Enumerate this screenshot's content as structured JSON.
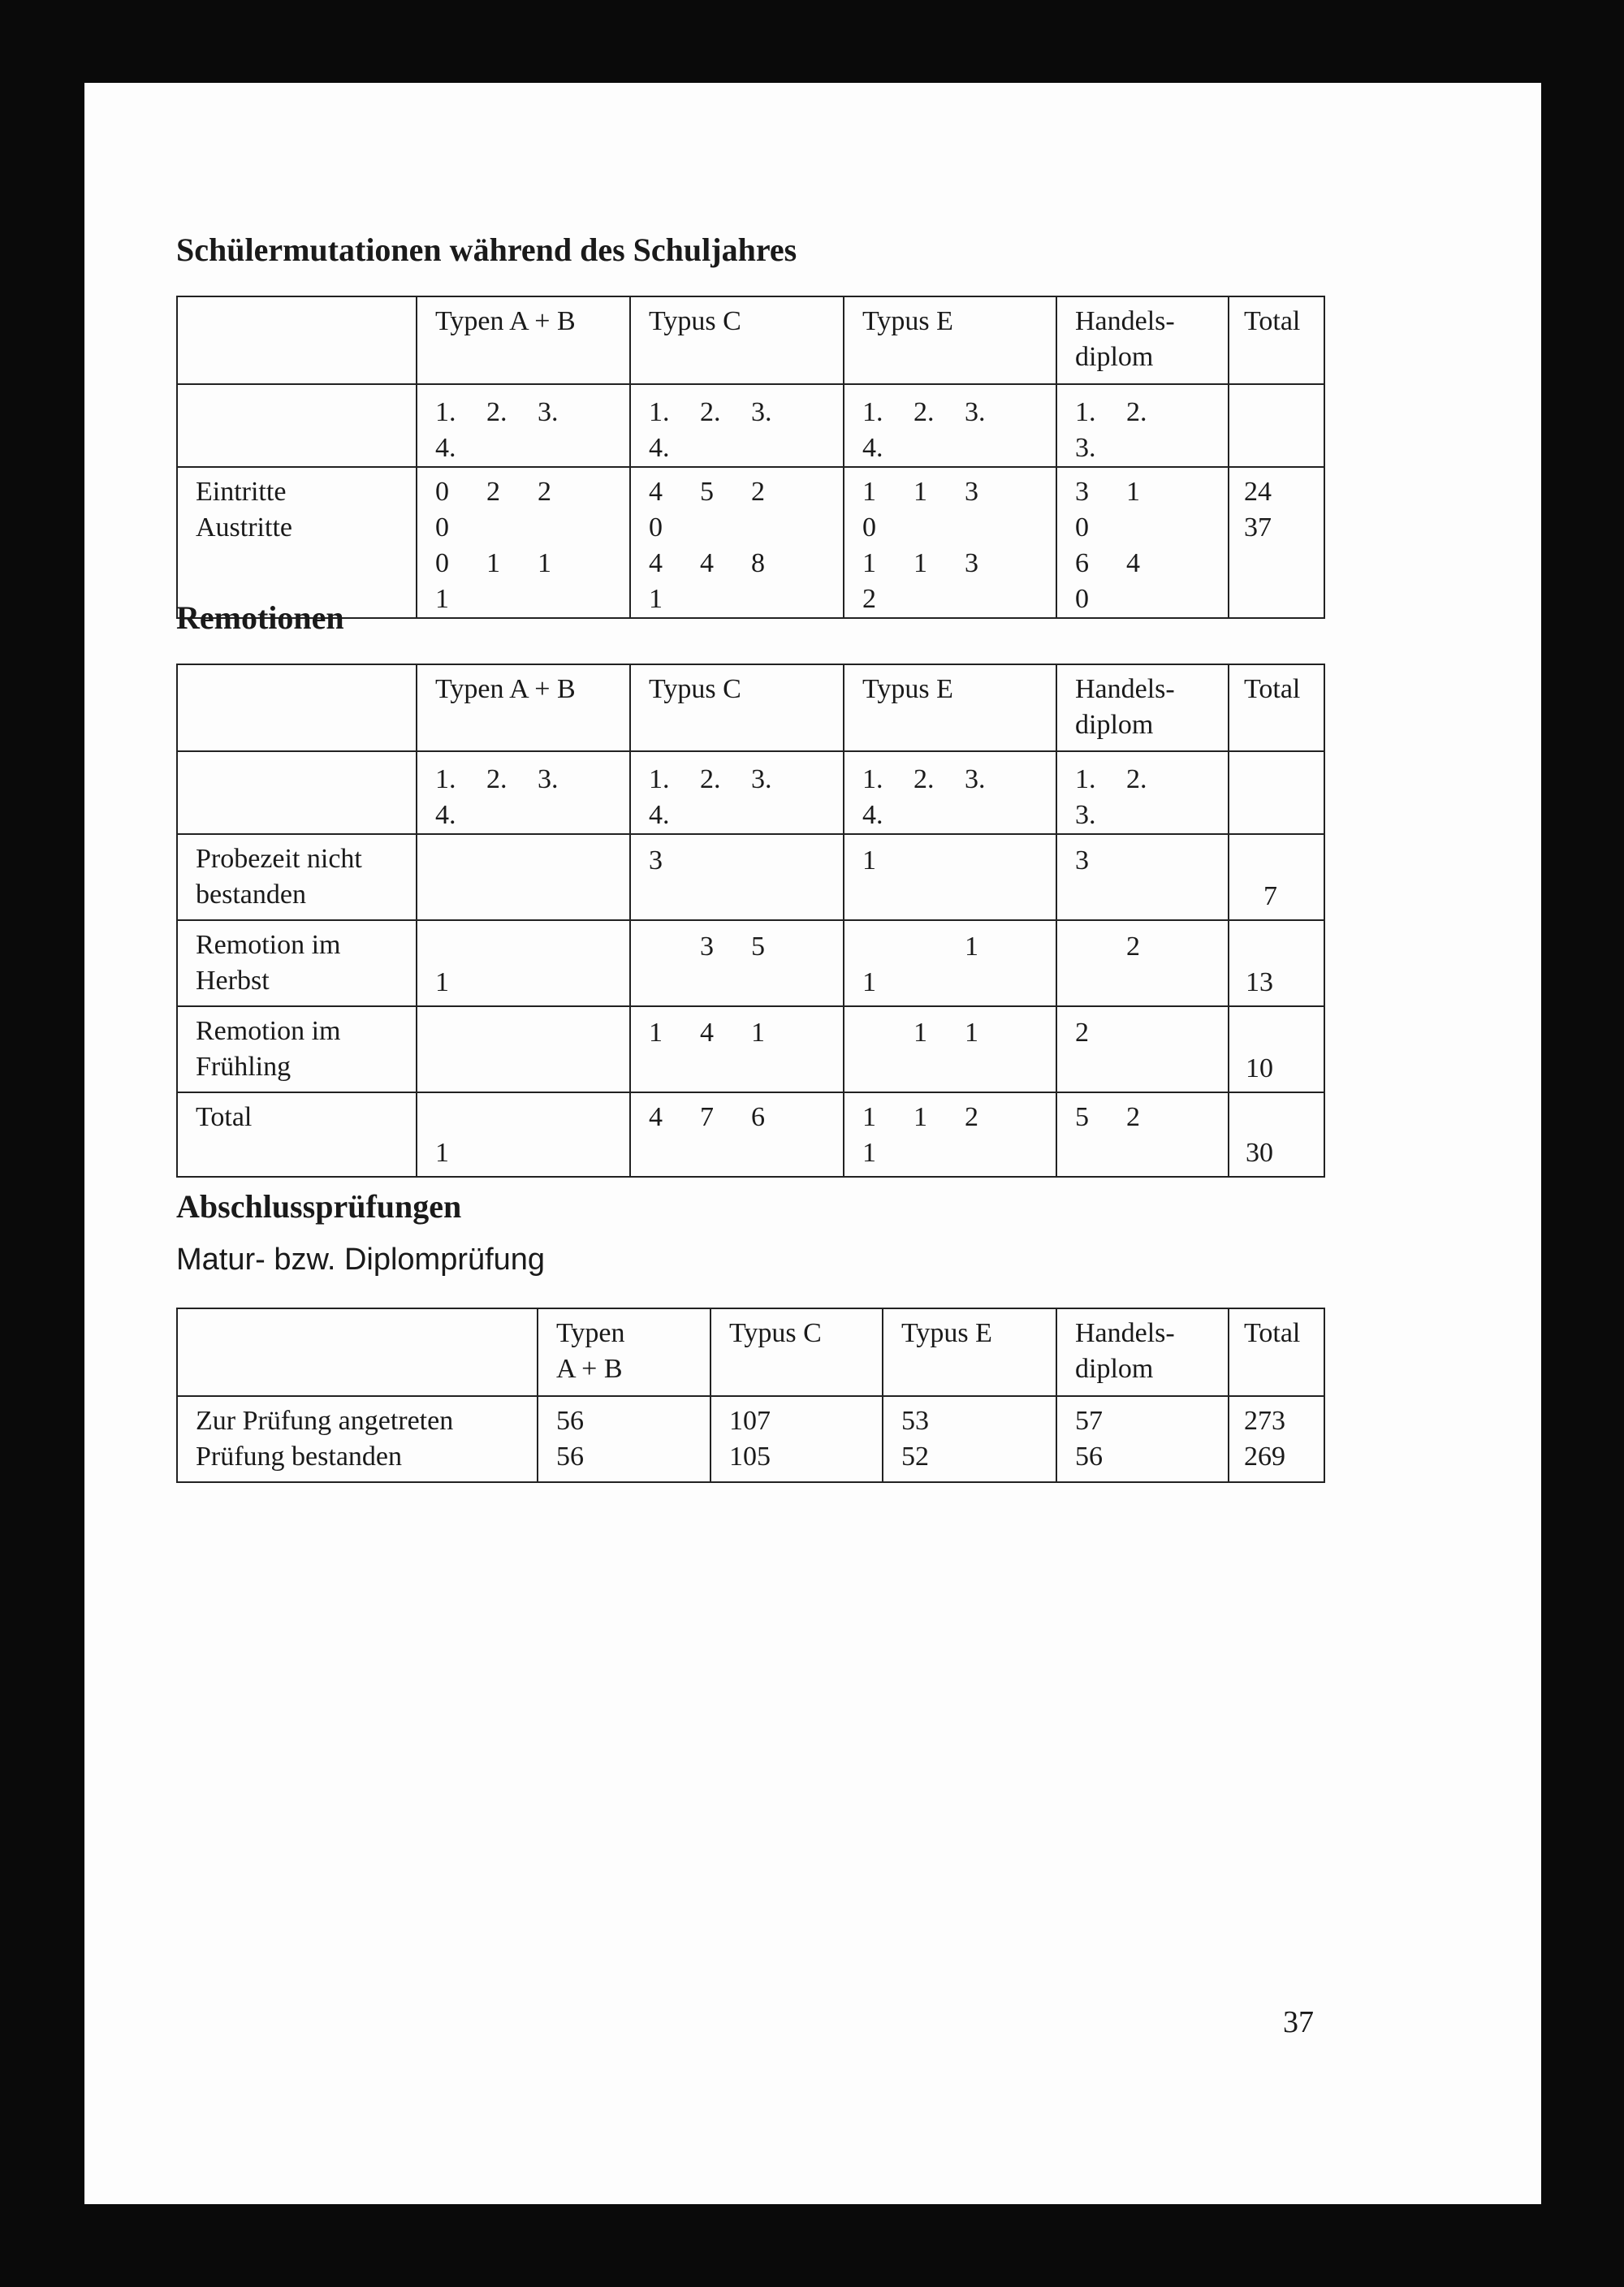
{
  "section1": {
    "title": "Schülermutationen während des Schuljahres",
    "headers": [
      "",
      "Typen A + B",
      "Typus C",
      "Typus E",
      "Handels-\ndiplom",
      "Total"
    ],
    "grades": [
      [
        "1.",
        "2.",
        "3.",
        "4."
      ],
      [
        "1.",
        "2.",
        "3.",
        "4."
      ],
      [
        "1.",
        "2.",
        "3.",
        "4."
      ],
      [
        "1.",
        "2.",
        "3."
      ]
    ],
    "rows": [
      {
        "label": "Eintritte",
        "groups": [
          [
            "0",
            "2",
            "2",
            "0"
          ],
          [
            "4",
            "5",
            "2",
            "0"
          ],
          [
            "1",
            "1",
            "3",
            "0"
          ],
          [
            "3",
            "1",
            "0"
          ]
        ],
        "total": "24"
      },
      {
        "label": "Austritte",
        "groups": [
          [
            "0",
            "1",
            "1",
            "1"
          ],
          [
            "4",
            "4",
            "8",
            "1"
          ],
          [
            "1",
            "1",
            "3",
            "2"
          ],
          [
            "6",
            "4",
            "0"
          ]
        ],
        "total": "37"
      }
    ]
  },
  "section2": {
    "title": "Remotionen",
    "headers": [
      "",
      "Typen A + B",
      "Typus C",
      "Typus E",
      "Handels-\ndiplom",
      "Total"
    ],
    "grades": [
      [
        "1.",
        "2.",
        "3.",
        "4."
      ],
      [
        "1.",
        "2.",
        "3.",
        "4."
      ],
      [
        "1.",
        "2.",
        "3.",
        "4."
      ],
      [
        "1.",
        "2.",
        "3."
      ]
    ],
    "rows": [
      {
        "label": "Probezeit nicht\nbestanden",
        "groups": [
          [
            "",
            "",
            "",
            ""
          ],
          [
            "3",
            "",
            "",
            ""
          ],
          [
            "1",
            "",
            "",
            ""
          ],
          [
            "3",
            "",
            ""
          ]
        ],
        "total": "7"
      },
      {
        "label": "Remotion im\nHerbst",
        "groups": [
          [
            "",
            "",
            "",
            "1"
          ],
          [
            "",
            "3",
            "5",
            ""
          ],
          [
            "",
            "",
            "1",
            "1"
          ],
          [
            "",
            "2",
            ""
          ]
        ],
        "total": "13"
      },
      {
        "label": "Remotion im\nFrühling",
        "groups": [
          [
            "",
            "",
            "",
            ""
          ],
          [
            "1",
            "4",
            "1",
            ""
          ],
          [
            "",
            "1",
            "1",
            ""
          ],
          [
            "2",
            "",
            ""
          ]
        ],
        "total": "10"
      },
      {
        "label": "Total",
        "groups": [
          [
            "",
            "",
            "",
            "1"
          ],
          [
            "4",
            "7",
            "6",
            ""
          ],
          [
            "1",
            "1",
            "2",
            "1"
          ],
          [
            "5",
            "2",
            ""
          ]
        ],
        "total": "30"
      }
    ]
  },
  "section3": {
    "title": "Abschlussprüfungen",
    "subtitle": "Matur- bzw. Diplomprüfung",
    "headers": [
      "",
      "Typen\nA + B",
      "Typus C",
      "Typus E",
      "Handels-\ndiplom",
      "Total"
    ],
    "rows": [
      {
        "label": "Zur Prüfung angetreten",
        "values": [
          "56",
          "107",
          "53",
          "57",
          "273"
        ]
      },
      {
        "label": "Prüfung bestanden",
        "values": [
          "56",
          "105",
          "52",
          "56",
          "269"
        ]
      }
    ]
  },
  "page_number": "37"
}
